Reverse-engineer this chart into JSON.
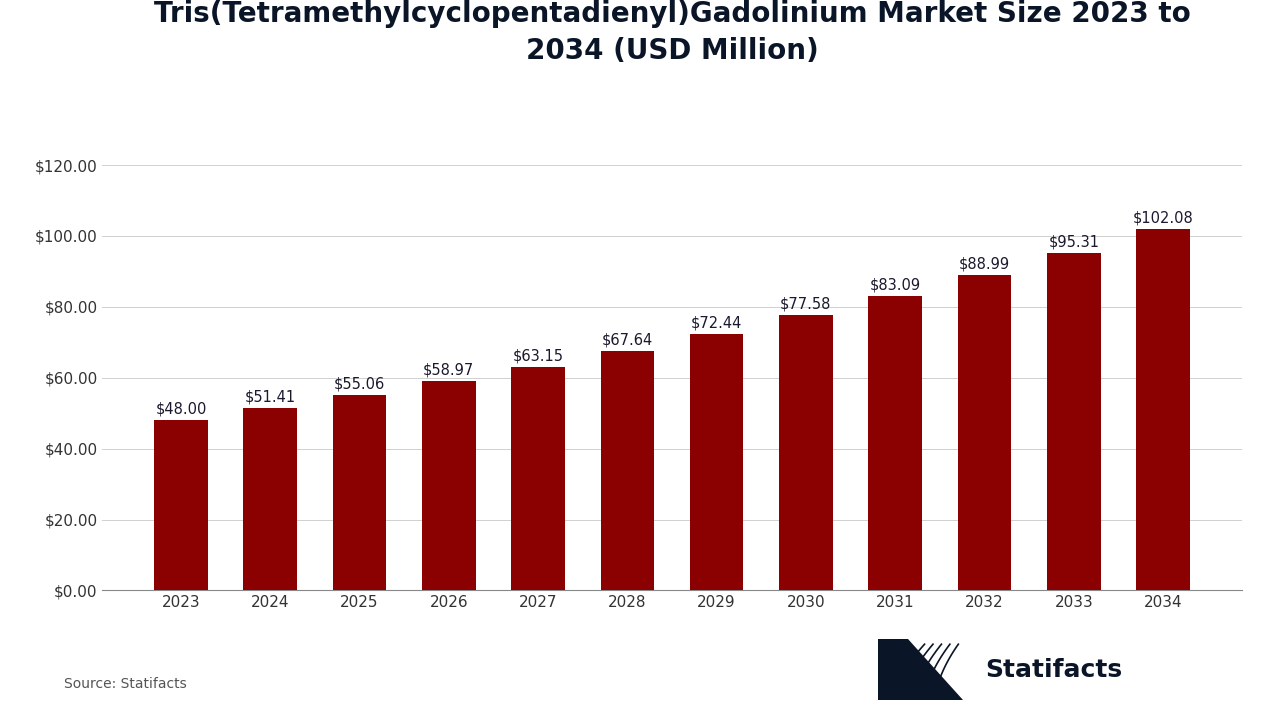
{
  "title_line1": "Tris(Tetramethylcyclopentadienyl)Gadolinium Market Size 2023 to",
  "title_line2": "2034 (USD Million)",
  "years": [
    "2023",
    "2024",
    "2025",
    "2026",
    "2027",
    "2028",
    "2029",
    "2030",
    "2031",
    "2032",
    "2033",
    "2034"
  ],
  "values": [
    48.0,
    51.41,
    55.06,
    58.97,
    63.15,
    67.64,
    72.44,
    77.58,
    83.09,
    88.99,
    95.31,
    102.08
  ],
  "bar_color": "#8B0000",
  "background_color": "#FFFFFF",
  "title_color": "#0a1628",
  "tick_color": "#333333",
  "label_color": "#1a1a2e",
  "ytick_labels": [
    "$0.00",
    "$20.00",
    "$40.00",
    "$60.00",
    "$80.00",
    "$100.00",
    "$120.00"
  ],
  "ytick_values": [
    0,
    20,
    40,
    60,
    80,
    100,
    120
  ],
  "ylim": [
    0,
    130
  ],
  "source_text": "Source: Statifacts",
  "grid_color": "#d0d0d0",
  "axis_line_color": "#888888",
  "title_fontsize": 20,
  "bar_label_fontsize": 10.5,
  "tick_fontsize": 11,
  "source_fontsize": 10,
  "statifacts_fontsize": 18,
  "logo_color": "#0a1628"
}
